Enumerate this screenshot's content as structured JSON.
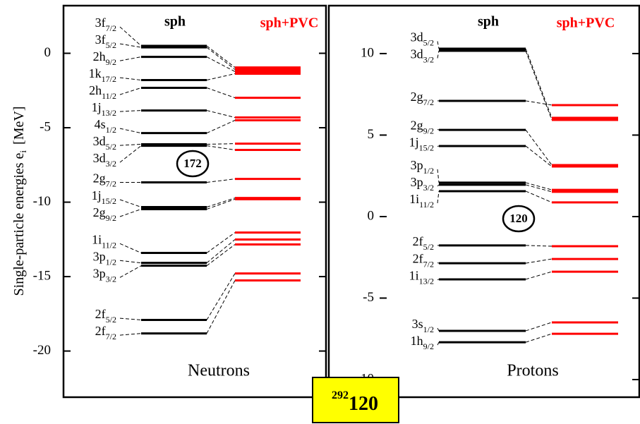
{
  "y_title": {
    "text": "Single-particle energies e",
    "sub": "i",
    "unit": "[MeV]"
  },
  "nucleus": {
    "mass": "292",
    "z": "120"
  },
  "chart_data": [
    {
      "type": "levels",
      "label": "Neutrons",
      "magic": "172",
      "columns": [
        "sph",
        "sph+PVC"
      ],
      "colors": [
        "#000000",
        "#ff0000"
      ],
      "ylim": [
        -23.1,
        3.2
      ],
      "yticks": [
        -20,
        -15,
        -10,
        -5,
        0
      ],
      "levels": [
        {
          "name": "3f",
          "j": "7/2",
          "sph": 0.5,
          "pvc": -0.95
        },
        {
          "name": "3f",
          "j": "5/2",
          "sph": 0.4,
          "pvc": -1.09
        },
        {
          "name": "2h",
          "j": "9/2",
          "sph": -0.24,
          "pvc": -1.23
        },
        {
          "name": "1k",
          "j": "17/2",
          "sph": -1.8,
          "pvc": -1.37
        },
        {
          "name": "2h",
          "j": "11/2",
          "sph": -2.32,
          "pvc": -2.99
        },
        {
          "name": "1j",
          "j": "13/2",
          "sph": -3.84,
          "pvc": -4.31
        },
        {
          "name": "4s",
          "j": "1/2",
          "sph": -5.36,
          "pvc": -4.5
        },
        {
          "name": "3d",
          "j": "5/2",
          "sph": -6.11,
          "pvc": -6.07
        },
        {
          "name": "3d",
          "j": "3/2",
          "sph": -6.21,
          "pvc": -6.49
        },
        {
          "name": "2g",
          "j": "7/2",
          "sph": -8.67,
          "pvc": -8.44
        },
        {
          "name": "1j",
          "j": "15/2",
          "sph": -10.33,
          "pvc": -9.72
        },
        {
          "name": "2g",
          "j": "9/2",
          "sph": -10.47,
          "pvc": -9.8
        },
        {
          "name": "1i",
          "j": "11/2",
          "sph": -13.41,
          "pvc": -12.04
        },
        {
          "name": "3p",
          "j": "1/2",
          "sph": -14.08,
          "pvc": -12.51
        },
        {
          "name": "3p",
          "j": "3/2",
          "sph": -14.27,
          "pvc": -12.84
        },
        {
          "name": "2f",
          "j": "5/2",
          "sph": -17.91,
          "pvc": -14.79
        },
        {
          "name": "2f",
          "j": "7/2",
          "sph": -18.82,
          "pvc": -15.26
        }
      ]
    },
    {
      "type": "levels",
      "label": "Protons",
      "magic": "120",
      "columns": [
        "sph",
        "sph+PVC"
      ],
      "colors": [
        "#000000",
        "#ff0000"
      ],
      "ylim": [
        -11.08,
        12.94
      ],
      "yticks": [
        -10,
        -5,
        0,
        5,
        10
      ],
      "levels": [
        {
          "name": "3d",
          "j": "5/2",
          "sph": 10.3,
          "pvc": 6.06
        },
        {
          "name": "3d",
          "j": "3/2",
          "sph": 10.17,
          "pvc": 5.93
        },
        {
          "name": "2g",
          "j": "7/2",
          "sph": 7.1,
          "pvc": 6.84
        },
        {
          "name": "2g",
          "j": "9/2",
          "sph": 5.32,
          "pvc": 3.16
        },
        {
          "name": "1j",
          "j": "15/2",
          "sph": 4.33,
          "pvc": 3.07
        },
        {
          "name": "3p",
          "j": "1/2",
          "sph": 2.08,
          "pvc": 1.64
        },
        {
          "name": "3p",
          "j": "3/2",
          "sph": 1.95,
          "pvc": 1.52
        },
        {
          "name": "1i",
          "j": "11/2",
          "sph": 1.56,
          "pvc": 0.87
        },
        {
          "name": "2f",
          "j": "5/2",
          "sph": -1.77,
          "pvc": -1.82
        },
        {
          "name": "2f",
          "j": "7/2",
          "sph": -2.86,
          "pvc": -2.6
        },
        {
          "name": "1i",
          "j": "13/2",
          "sph": -3.85,
          "pvc": -3.38
        },
        {
          "name": "3s",
          "j": "1/2",
          "sph": -7.01,
          "pvc": -6.49
        },
        {
          "name": "1h",
          "j": "9/2",
          "sph": -7.71,
          "pvc": -7.19
        }
      ]
    }
  ]
}
